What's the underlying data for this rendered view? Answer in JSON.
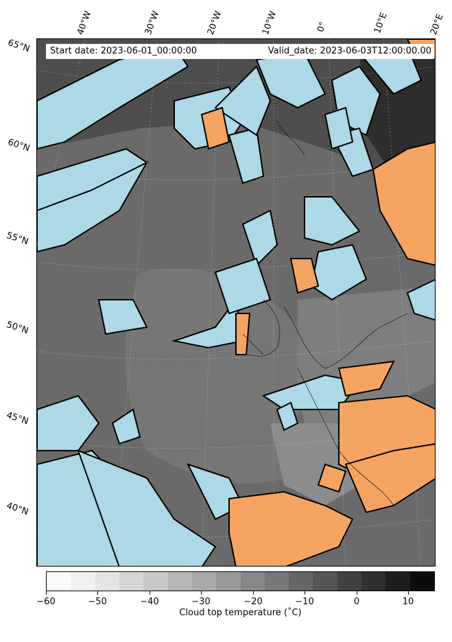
{
  "header": {
    "start_date": "Start date: 2023-06-01_00:00:00",
    "valid_date": "Valid_date: 2023-06-03T12:00:00.00"
  },
  "longitude_labels": [
    "40°W",
    "30°W",
    "20°W",
    "10°W",
    "0°",
    "10°E",
    "20°E"
  ],
  "latitude_labels": [
    "65°N",
    "60°N",
    "55°N",
    "50°N",
    "45°N",
    "40°N"
  ],
  "colorbar": {
    "label": "Cloud top temperature ($^\\circ$C)",
    "label_display": "Cloud top temperature (˚C)",
    "ticks": [
      "−60",
      "−50",
      "−40",
      "−30",
      "−20",
      "−10",
      "0",
      "10"
    ],
    "colors": [
      "#fafafa",
      "#f0f0f0",
      "#e4e4e4",
      "#d6d6d6",
      "#c8c8c8",
      "#b8b8b8",
      "#a8a8a8",
      "#989898",
      "#878787",
      "#777777",
      "#666666",
      "#555555",
      "#424242",
      "#303030",
      "#1e1e1e",
      "#0c0c0c"
    ]
  },
  "map_colors": {
    "clear_sea": "#add8e6",
    "clear_land": "#f4a460",
    "cloud_dark": "#4a4a4a",
    "cloud_mid": "#6e6e6e",
    "cloud_light": "#8a8a8a"
  }
}
